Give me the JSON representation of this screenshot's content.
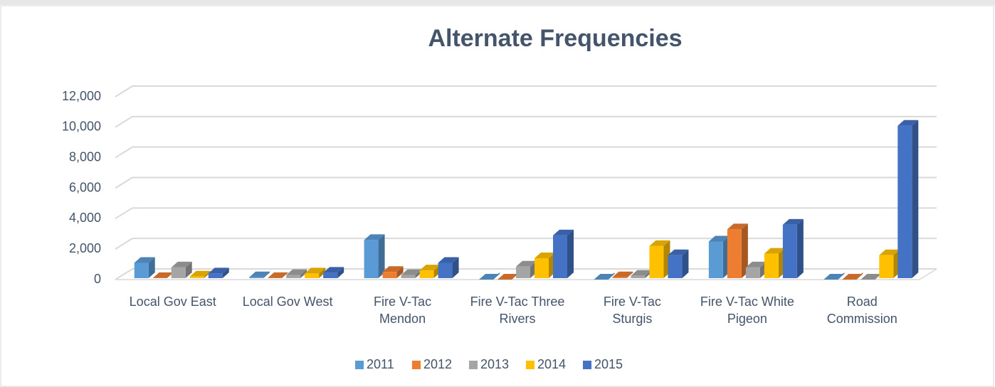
{
  "chart_data": {
    "type": "bar3d",
    "title": "Alternate Frequencies",
    "categories": [
      "Local Gov East",
      "Local Gov West",
      "Fire V-Tac Mendon",
      "Fire V-Tac Three Rivers",
      "Fire V-Tac Sturgis",
      "Fire V-Tac White Pigeon",
      "Road Commission"
    ],
    "series": [
      {
        "name": "2011",
        "color": "#5b9bd5",
        "values": [
          1100,
          150,
          2600,
          0,
          0,
          2500,
          0
        ]
      },
      {
        "name": "2012",
        "color": "#ed7d31",
        "values": [
          100,
          100,
          500,
          0,
          150,
          3300,
          0
        ]
      },
      {
        "name": "2013",
        "color": "#a5a5a5",
        "values": [
          800,
          300,
          300,
          850,
          250,
          800,
          0
        ]
      },
      {
        "name": "2014",
        "color": "#ffc000",
        "values": [
          200,
          400,
          600,
          1400,
          2200,
          1700,
          1600
        ]
      },
      {
        "name": "2015",
        "color": "#4472c4",
        "values": [
          400,
          450,
          1100,
          2900,
          1600,
          3600,
          10100
        ]
      }
    ],
    "ylim": [
      0,
      12000
    ],
    "yticks": [
      0,
      {
        "value": 2000,
        "label": "2,000"
      },
      {
        "value": 4000,
        "label": "4,000"
      },
      {
        "value": 6000,
        "label": "6,000"
      },
      {
        "value": 8000,
        "label": "8,000"
      },
      {
        "value": 10000,
        "label": "10,000"
      },
      {
        "value": 12000,
        "label": "12,000"
      }
    ],
    "grid": true,
    "legend": "bottom"
  }
}
